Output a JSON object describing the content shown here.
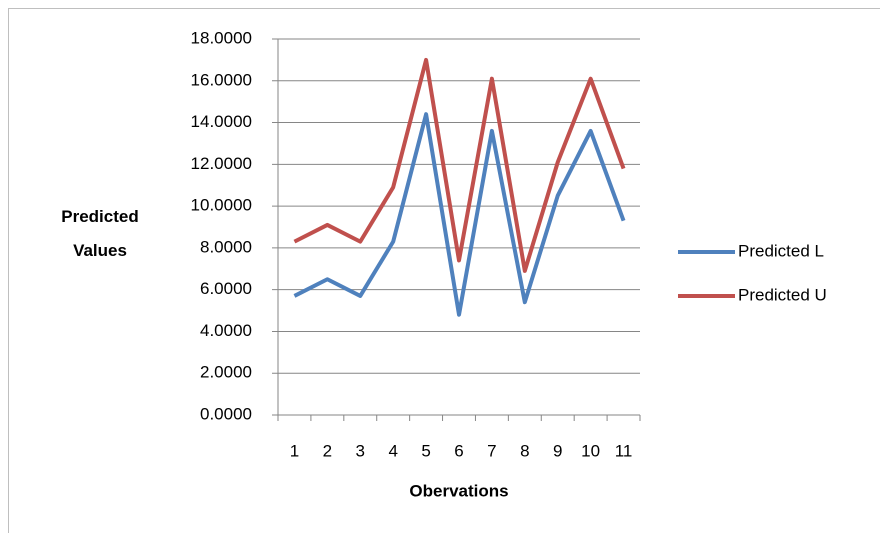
{
  "chart_data": {
    "type": "line",
    "x_label": "Obervations",
    "y_label": "Predicted Values",
    "categories": [
      "1",
      "2",
      "3",
      "4",
      "5",
      "6",
      "7",
      "8",
      "9",
      "10",
      "11"
    ],
    "series": [
      {
        "name": "Predicted L",
        "color": "#4f81bd",
        "values": [
          5.7,
          6.5,
          5.7,
          8.3,
          14.4,
          4.8,
          13.6,
          5.4,
          10.5,
          13.6,
          9.3
        ]
      },
      {
        "name": "Predicted U",
        "color": "#c0504d",
        "values": [
          8.3,
          9.1,
          8.3,
          10.9,
          17.0,
          7.4,
          16.1,
          6.9,
          12.1,
          16.1,
          11.8
        ]
      }
    ],
    "ylim": [
      0,
      18
    ],
    "yticks": [
      {
        "value": 0,
        "label": "0.0000"
      },
      {
        "value": 2,
        "label": "2.0000"
      },
      {
        "value": 4,
        "label": "4.0000"
      },
      {
        "value": 6,
        "label": "6.0000"
      },
      {
        "value": 8,
        "label": "8.0000"
      },
      {
        "value": 10,
        "label": "10.0000"
      },
      {
        "value": 12,
        "label": "12.0000"
      },
      {
        "value": 14,
        "label": "14.0000"
      },
      {
        "value": 16,
        "label": "16.0000"
      },
      {
        "value": 18,
        "label": "18.0000"
      }
    ],
    "grid": true,
    "legend": "right"
  }
}
